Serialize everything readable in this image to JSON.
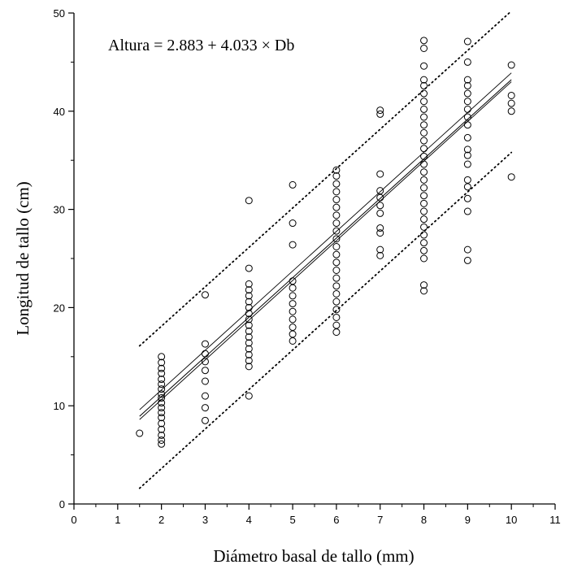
{
  "chart_data": {
    "type": "scatter",
    "title": "",
    "annotation": "Altura = 2.883 + 4.033 × Db",
    "xlabel": "Diámetro basal de tallo (mm)",
    "ylabel": "Longitud de tallo (cm)",
    "xlim": [
      0,
      11
    ],
    "ylim": [
      0,
      50
    ],
    "xticks": [
      "0",
      "1",
      "2",
      "3",
      "4",
      "5",
      "6",
      "7",
      "8",
      "9",
      "10",
      "11"
    ],
    "yticks": [
      "0",
      "10",
      "20",
      "30",
      "40",
      "50"
    ],
    "grid": false,
    "regression": {
      "intercept": 2.883,
      "slope": 4.033,
      "x_range": [
        1.5,
        10
      ]
    },
    "confidence_band": {
      "lower": [
        [
          1.5,
          8.6
        ],
        [
          10,
          43.0
        ]
      ],
      "upper": [
        [
          1.5,
          9.6
        ],
        [
          10,
          43.9
        ]
      ]
    },
    "prediction_band": {
      "lower": [
        [
          1.5,
          1.6
        ],
        [
          10,
          35.8
        ]
      ],
      "upper": [
        [
          1.5,
          16.1
        ],
        [
          10,
          50.2
        ]
      ]
    },
    "points": [
      {
        "x": 1.5,
        "y": 7.2
      },
      {
        "x": 2,
        "y": 6.1
      },
      {
        "x": 2,
        "y": 6.5
      },
      {
        "x": 2,
        "y": 7.0
      },
      {
        "x": 2,
        "y": 7.6
      },
      {
        "x": 2,
        "y": 8.2
      },
      {
        "x": 2,
        "y": 8.8
      },
      {
        "x": 2,
        "y": 9.3
      },
      {
        "x": 2,
        "y": 9.8
      },
      {
        "x": 2,
        "y": 10.3
      },
      {
        "x": 2,
        "y": 10.8
      },
      {
        "x": 2,
        "y": 11.2
      },
      {
        "x": 2,
        "y": 11.7
      },
      {
        "x": 2,
        "y": 12.2
      },
      {
        "x": 2,
        "y": 12.7
      },
      {
        "x": 2,
        "y": 13.3
      },
      {
        "x": 2,
        "y": 13.8
      },
      {
        "x": 2,
        "y": 14.4
      },
      {
        "x": 2,
        "y": 15.0
      },
      {
        "x": 3,
        "y": 8.5
      },
      {
        "x": 3,
        "y": 9.8
      },
      {
        "x": 3,
        "y": 11.0
      },
      {
        "x": 3,
        "y": 12.5
      },
      {
        "x": 3,
        "y": 13.6
      },
      {
        "x": 3,
        "y": 14.5
      },
      {
        "x": 3,
        "y": 15.3
      },
      {
        "x": 3,
        "y": 16.3
      },
      {
        "x": 3,
        "y": 21.3
      },
      {
        "x": 4,
        "y": 11.0
      },
      {
        "x": 4,
        "y": 14.0
      },
      {
        "x": 4,
        "y": 14.6
      },
      {
        "x": 4,
        "y": 15.2
      },
      {
        "x": 4,
        "y": 15.8
      },
      {
        "x": 4,
        "y": 16.4
      },
      {
        "x": 4,
        "y": 17.0
      },
      {
        "x": 4,
        "y": 17.6
      },
      {
        "x": 4,
        "y": 18.2
      },
      {
        "x": 4,
        "y": 18.8
      },
      {
        "x": 4,
        "y": 19.4
      },
      {
        "x": 4,
        "y": 20.0
      },
      {
        "x": 4,
        "y": 20.6
      },
      {
        "x": 4,
        "y": 21.2
      },
      {
        "x": 4,
        "y": 21.8
      },
      {
        "x": 4,
        "y": 22.4
      },
      {
        "x": 4,
        "y": 24.0
      },
      {
        "x": 4,
        "y": 30.9
      },
      {
        "x": 5,
        "y": 16.6
      },
      {
        "x": 5,
        "y": 17.3
      },
      {
        "x": 5,
        "y": 18.0
      },
      {
        "x": 5,
        "y": 18.8
      },
      {
        "x": 5,
        "y": 19.6
      },
      {
        "x": 5,
        "y": 20.4
      },
      {
        "x": 5,
        "y": 21.2
      },
      {
        "x": 5,
        "y": 22.0
      },
      {
        "x": 5,
        "y": 22.7
      },
      {
        "x": 5,
        "y": 26.4
      },
      {
        "x": 5,
        "y": 28.6
      },
      {
        "x": 5,
        "y": 32.5
      },
      {
        "x": 6,
        "y": 17.5
      },
      {
        "x": 6,
        "y": 18.2
      },
      {
        "x": 6,
        "y": 19.0
      },
      {
        "x": 6,
        "y": 19.8
      },
      {
        "x": 6,
        "y": 20.6
      },
      {
        "x": 6,
        "y": 21.4
      },
      {
        "x": 6,
        "y": 22.2
      },
      {
        "x": 6,
        "y": 23.0
      },
      {
        "x": 6,
        "y": 23.8
      },
      {
        "x": 6,
        "y": 24.6
      },
      {
        "x": 6,
        "y": 25.4
      },
      {
        "x": 6,
        "y": 26.2
      },
      {
        "x": 6,
        "y": 27.0
      },
      {
        "x": 6,
        "y": 27.8
      },
      {
        "x": 6,
        "y": 28.6
      },
      {
        "x": 6,
        "y": 29.4
      },
      {
        "x": 6,
        "y": 30.2
      },
      {
        "x": 6,
        "y": 31.0
      },
      {
        "x": 6,
        "y": 31.8
      },
      {
        "x": 6,
        "y": 32.6
      },
      {
        "x": 6,
        "y": 33.4
      },
      {
        "x": 6,
        "y": 34.0
      },
      {
        "x": 7,
        "y": 25.3
      },
      {
        "x": 7,
        "y": 25.9
      },
      {
        "x": 7,
        "y": 27.6
      },
      {
        "x": 7,
        "y": 28.1
      },
      {
        "x": 7,
        "y": 29.6
      },
      {
        "x": 7,
        "y": 30.4
      },
      {
        "x": 7,
        "y": 31.2
      },
      {
        "x": 7,
        "y": 31.9
      },
      {
        "x": 7,
        "y": 33.6
      },
      {
        "x": 7,
        "y": 39.7
      },
      {
        "x": 7,
        "y": 40.1
      },
      {
        "x": 8,
        "y": 21.7
      },
      {
        "x": 8,
        "y": 22.3
      },
      {
        "x": 8,
        "y": 25.0
      },
      {
        "x": 8,
        "y": 25.8
      },
      {
        "x": 8,
        "y": 26.6
      },
      {
        "x": 8,
        "y": 27.4
      },
      {
        "x": 8,
        "y": 28.2
      },
      {
        "x": 8,
        "y": 29.0
      },
      {
        "x": 8,
        "y": 29.8
      },
      {
        "x": 8,
        "y": 30.6
      },
      {
        "x": 8,
        "y": 31.4
      },
      {
        "x": 8,
        "y": 32.2
      },
      {
        "x": 8,
        "y": 33.0
      },
      {
        "x": 8,
        "y": 33.8
      },
      {
        "x": 8,
        "y": 34.6
      },
      {
        "x": 8,
        "y": 35.4
      },
      {
        "x": 8,
        "y": 36.2
      },
      {
        "x": 8,
        "y": 37.0
      },
      {
        "x": 8,
        "y": 37.8
      },
      {
        "x": 8,
        "y": 38.6
      },
      {
        "x": 8,
        "y": 39.4
      },
      {
        "x": 8,
        "y": 40.2
      },
      {
        "x": 8,
        "y": 41.0
      },
      {
        "x": 8,
        "y": 41.8
      },
      {
        "x": 8,
        "y": 42.6
      },
      {
        "x": 8,
        "y": 43.2
      },
      {
        "x": 8,
        "y": 44.6
      },
      {
        "x": 8,
        "y": 46.4
      },
      {
        "x": 8,
        "y": 47.2
      },
      {
        "x": 9,
        "y": 24.8
      },
      {
        "x": 9,
        "y": 25.9
      },
      {
        "x": 9,
        "y": 29.8
      },
      {
        "x": 9,
        "y": 31.1
      },
      {
        "x": 9,
        "y": 32.3
      },
      {
        "x": 9,
        "y": 33.0
      },
      {
        "x": 9,
        "y": 34.6
      },
      {
        "x": 9,
        "y": 35.5
      },
      {
        "x": 9,
        "y": 36.1
      },
      {
        "x": 9,
        "y": 37.3
      },
      {
        "x": 9,
        "y": 38.6
      },
      {
        "x": 9,
        "y": 39.4
      },
      {
        "x": 9,
        "y": 40.2
      },
      {
        "x": 9,
        "y": 41.0
      },
      {
        "x": 9,
        "y": 41.8
      },
      {
        "x": 9,
        "y": 42.6
      },
      {
        "x": 9,
        "y": 43.2
      },
      {
        "x": 9,
        "y": 45.0
      },
      {
        "x": 9,
        "y": 47.1
      },
      {
        "x": 10,
        "y": 33.3
      },
      {
        "x": 10,
        "y": 40.0
      },
      {
        "x": 10,
        "y": 40.8
      },
      {
        "x": 10,
        "y": 41.6
      },
      {
        "x": 10,
        "y": 44.7
      }
    ]
  }
}
